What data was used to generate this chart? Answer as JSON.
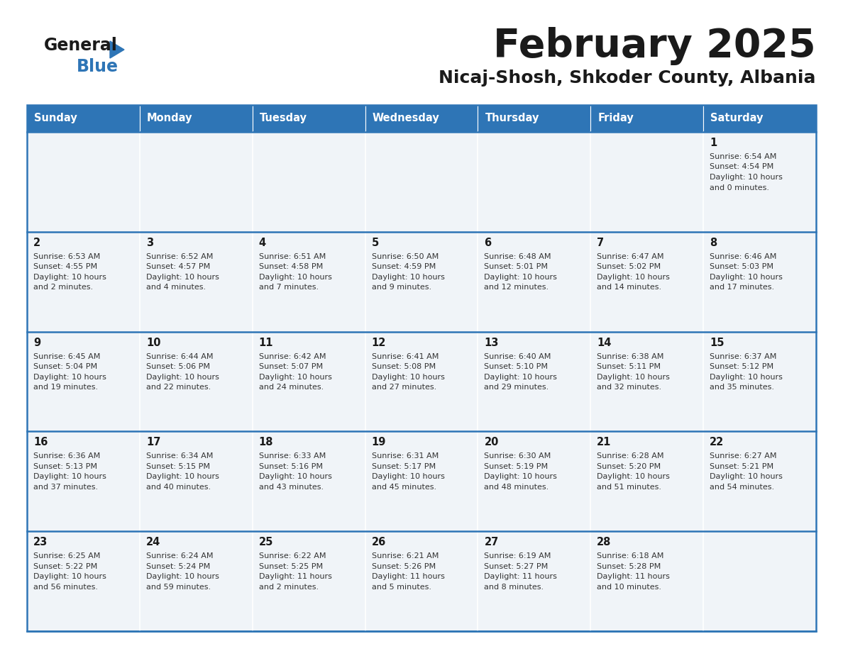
{
  "title": "February 2025",
  "subtitle": "Nicaj-Shosh, Shkoder County, Albania",
  "header_bg": "#2E75B6",
  "header_text_color": "#FFFFFF",
  "cell_bg": "#F0F4F8",
  "day_headers": [
    "Sunday",
    "Monday",
    "Tuesday",
    "Wednesday",
    "Thursday",
    "Friday",
    "Saturday"
  ],
  "title_color": "#1A1A1A",
  "subtitle_color": "#1A1A1A",
  "day_number_color": "#1A1A1A",
  "info_text_color": "#333333",
  "logo_general_color": "#1A1A1A",
  "logo_blue_color": "#2E75B6",
  "grid_color": "#2E75B6",
  "border_color": "#2E75B6",
  "calendar_data": [
    [
      null,
      null,
      null,
      null,
      null,
      null,
      {
        "day": "1",
        "sunrise": "6:54 AM",
        "sunset": "4:54 PM",
        "daylight_h": "10",
        "daylight_m": "0"
      }
    ],
    [
      {
        "day": "2",
        "sunrise": "6:53 AM",
        "sunset": "4:55 PM",
        "daylight_h": "10",
        "daylight_m": "2"
      },
      {
        "day": "3",
        "sunrise": "6:52 AM",
        "sunset": "4:57 PM",
        "daylight_h": "10",
        "daylight_m": "4"
      },
      {
        "day": "4",
        "sunrise": "6:51 AM",
        "sunset": "4:58 PM",
        "daylight_h": "10",
        "daylight_m": "7"
      },
      {
        "day": "5",
        "sunrise": "6:50 AM",
        "sunset": "4:59 PM",
        "daylight_h": "10",
        "daylight_m": "9"
      },
      {
        "day": "6",
        "sunrise": "6:48 AM",
        "sunset": "5:01 PM",
        "daylight_h": "10",
        "daylight_m": "12"
      },
      {
        "day": "7",
        "sunrise": "6:47 AM",
        "sunset": "5:02 PM",
        "daylight_h": "10",
        "daylight_m": "14"
      },
      {
        "day": "8",
        "sunrise": "6:46 AM",
        "sunset": "5:03 PM",
        "daylight_h": "10",
        "daylight_m": "17"
      }
    ],
    [
      {
        "day": "9",
        "sunrise": "6:45 AM",
        "sunset": "5:04 PM",
        "daylight_h": "10",
        "daylight_m": "19"
      },
      {
        "day": "10",
        "sunrise": "6:44 AM",
        "sunset": "5:06 PM",
        "daylight_h": "10",
        "daylight_m": "22"
      },
      {
        "day": "11",
        "sunrise": "6:42 AM",
        "sunset": "5:07 PM",
        "daylight_h": "10",
        "daylight_m": "24"
      },
      {
        "day": "12",
        "sunrise": "6:41 AM",
        "sunset": "5:08 PM",
        "daylight_h": "10",
        "daylight_m": "27"
      },
      {
        "day": "13",
        "sunrise": "6:40 AM",
        "sunset": "5:10 PM",
        "daylight_h": "10",
        "daylight_m": "29"
      },
      {
        "day": "14",
        "sunrise": "6:38 AM",
        "sunset": "5:11 PM",
        "daylight_h": "10",
        "daylight_m": "32"
      },
      {
        "day": "15",
        "sunrise": "6:37 AM",
        "sunset": "5:12 PM",
        "daylight_h": "10",
        "daylight_m": "35"
      }
    ],
    [
      {
        "day": "16",
        "sunrise": "6:36 AM",
        "sunset": "5:13 PM",
        "daylight_h": "10",
        "daylight_m": "37"
      },
      {
        "day": "17",
        "sunrise": "6:34 AM",
        "sunset": "5:15 PM",
        "daylight_h": "10",
        "daylight_m": "40"
      },
      {
        "day": "18",
        "sunrise": "6:33 AM",
        "sunset": "5:16 PM",
        "daylight_h": "10",
        "daylight_m": "43"
      },
      {
        "day": "19",
        "sunrise": "6:31 AM",
        "sunset": "5:17 PM",
        "daylight_h": "10",
        "daylight_m": "45"
      },
      {
        "day": "20",
        "sunrise": "6:30 AM",
        "sunset": "5:19 PM",
        "daylight_h": "10",
        "daylight_m": "48"
      },
      {
        "day": "21",
        "sunrise": "6:28 AM",
        "sunset": "5:20 PM",
        "daylight_h": "10",
        "daylight_m": "51"
      },
      {
        "day": "22",
        "sunrise": "6:27 AM",
        "sunset": "5:21 PM",
        "daylight_h": "10",
        "daylight_m": "54"
      }
    ],
    [
      {
        "day": "23",
        "sunrise": "6:25 AM",
        "sunset": "5:22 PM",
        "daylight_h": "10",
        "daylight_m": "56"
      },
      {
        "day": "24",
        "sunrise": "6:24 AM",
        "sunset": "5:24 PM",
        "daylight_h": "10",
        "daylight_m": "59"
      },
      {
        "day": "25",
        "sunrise": "6:22 AM",
        "sunset": "5:25 PM",
        "daylight_h": "11",
        "daylight_m": "2"
      },
      {
        "day": "26",
        "sunrise": "6:21 AM",
        "sunset": "5:26 PM",
        "daylight_h": "11",
        "daylight_m": "5"
      },
      {
        "day": "27",
        "sunrise": "6:19 AM",
        "sunset": "5:27 PM",
        "daylight_h": "11",
        "daylight_m": "8"
      },
      {
        "day": "28",
        "sunrise": "6:18 AM",
        "sunset": "5:28 PM",
        "daylight_h": "11",
        "daylight_m": "10"
      },
      null
    ]
  ]
}
